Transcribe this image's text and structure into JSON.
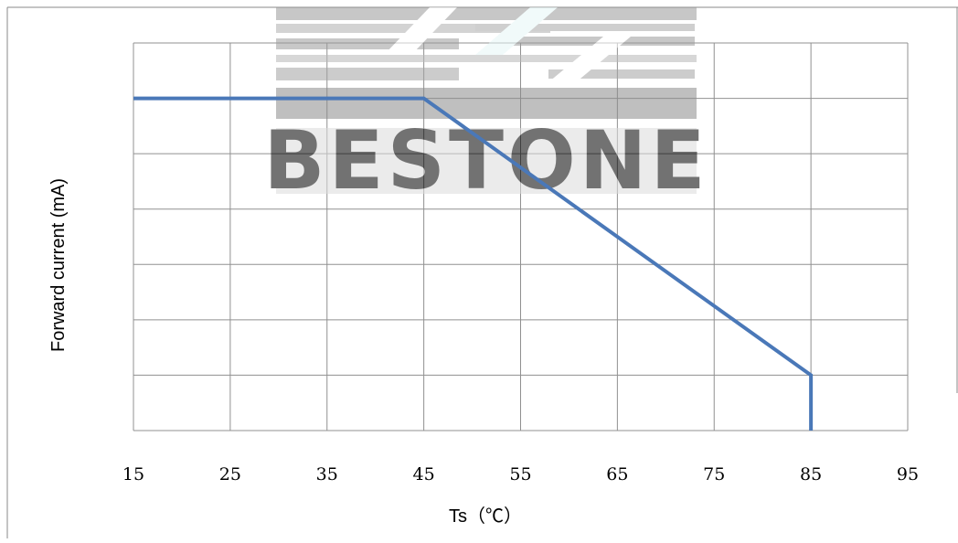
{
  "chart_data": {
    "type": "line",
    "xlabel": "Ts（℃）",
    "ylabel": "Forward current (mA)",
    "xlim": [
      15,
      95
    ],
    "x_ticks": [
      "15",
      "25",
      "35",
      "45",
      "55",
      "65",
      "75",
      "85",
      "95"
    ],
    "y_gridlines": 7,
    "grid": true,
    "series": [
      {
        "color": "#4a78b8",
        "points": [
          [
            15,
            6
          ],
          [
            45,
            6
          ],
          [
            85,
            1
          ],
          [
            85,
            0
          ]
        ]
      }
    ]
  },
  "watermark": {
    "text": "BESTONE"
  }
}
